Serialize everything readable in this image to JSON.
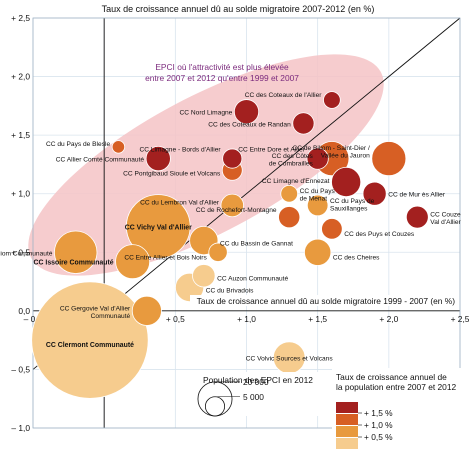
{
  "chart_data": {
    "type": "scatter",
    "title": "Taux de croissance annuel dû au solde migratoire 2007-2012 (en %)",
    "xlabel": "Taux de croissance annuel dû au solde migratoire 1999 - 2007 (en %)",
    "ylabel": "",
    "xlim": [
      -0.5,
      2.5
    ],
    "ylim": [
      -1.0,
      2.5
    ],
    "x_ticks": [
      -0.5,
      0.0,
      0.5,
      1.0,
      1.5,
      2.0,
      2.5
    ],
    "y_ticks": [
      -1.0,
      -0.5,
      0.0,
      0.5,
      1.0,
      1.5,
      2.0,
      2.5
    ],
    "x_tick_labels": [
      "– 0,5",
      "0,0",
      "+ 0,5",
      "+ 1,0",
      "+ 1,5",
      "+ 2,0",
      "+ 2,5"
    ],
    "y_tick_labels": [
      "– 1,0",
      "– 0,5",
      "0,0",
      "+ 0,5",
      "+ 1,0",
      "+ 1,5",
      "+ 2,0",
      "+ 2,5"
    ],
    "grid": true,
    "diagonal_line": true,
    "highlight_zone_label": [
      "EPCI où l'attractivité est plus élevée",
      "entre 2007 et 2012 qu'entre 1999 et 2007"
    ],
    "size_legend": {
      "title": "Population des EPCI en 2012",
      "entries": [
        {
          "label": "20 000",
          "value": 20000
        },
        {
          "label": "5 000",
          "value": 5000
        }
      ]
    },
    "color_legend": {
      "title": [
        "Taux de croissance annuel de",
        "la population entre 2007 et 2012"
      ],
      "entries": [
        {
          "label": "+ 1,5 %",
          "color": "#a3201f"
        },
        {
          "label": "+ 1,0 %",
          "color": "#d75f24"
        },
        {
          "label": "+ 0,5 %",
          "color": "#e89a3e"
        },
        {
          "label": "",
          "color": "#f6cc8e"
        }
      ]
    },
    "points": [
      {
        "name": "CC Clermont Communauté",
        "x": -0.1,
        "y": -0.25,
        "pop": 285000,
        "cls": 3,
        "bold": true
      },
      {
        "name": "CC Vichy Val d'Allier",
        "x": 0.38,
        "y": 0.72,
        "pop": 80000,
        "cls": 2,
        "bold": true
      },
      {
        "name": "CC Riom Communauté",
        "x": -0.2,
        "y": 0.5,
        "pop": 33000,
        "cls": 2,
        "bold": false
      },
      {
        "name": "CC Issoire Communauté",
        "x": 0.2,
        "y": 0.42,
        "pop": 20000,
        "cls": 2,
        "bold": true
      },
      {
        "name": "CC Gergovie Val d'Allier Communauté",
        "x": 0.3,
        "y": 0.0,
        "pop": 14000,
        "cls": 2,
        "bold": false
      },
      {
        "name": "CC Volvic Sources et Volcans",
        "x": 1.3,
        "y": -0.4,
        "pop": 17000,
        "cls": 3,
        "bold": false
      },
      {
        "name": "CC Nord Limagne",
        "x": 1.0,
        "y": 1.7,
        "pop": 9000,
        "cls": 0,
        "bold": false
      },
      {
        "name": "CC des Coteaux de l'Allier",
        "x": 1.6,
        "y": 1.8,
        "pop": 3500,
        "cls": 0,
        "bold": false
      },
      {
        "name": "CC des Coteaux de Randan",
        "x": 1.4,
        "y": 1.6,
        "pop": 6500,
        "cls": 0,
        "bold": false
      },
      {
        "name": "CC du Pays de Blesle",
        "x": 0.1,
        "y": 1.4,
        "pop": 1500,
        "cls": 1,
        "bold": false
      },
      {
        "name": "CC Allier Comté Communauté",
        "x": 0.38,
        "y": 1.3,
        "pop": 9000,
        "cls": 0,
        "bold": false
      },
      {
        "name": "CC Limagne - Bords d'Allier",
        "x": 0.9,
        "y": 1.3,
        "pop": 5000,
        "cls": 0,
        "bold": false
      },
      {
        "name": "CC Pontgibaud Sioule et Volcans",
        "x": 0.9,
        "y": 1.2,
        "pop": 5500,
        "cls": 1,
        "bold": false
      },
      {
        "name": "CC Entre Dore et Allier",
        "x": 1.5,
        "y": 1.3,
        "pop": 6500,
        "cls": 0,
        "bold": false
      },
      {
        "name": "CC des Côtes de Combrailles",
        "x": 1.6,
        "y": 1.3,
        "pop": 20000,
        "cls": 1,
        "bold": false
      },
      {
        "name": "CC de Billom - Saint-Dier / Vallée du Jauron",
        "x": 2.0,
        "y": 1.3,
        "pop": 20000,
        "cls": 1,
        "bold": false
      },
      {
        "name": "CC Limagne d'Ennezat",
        "x": 1.7,
        "y": 1.1,
        "pop": 14000,
        "cls": 0,
        "bold": false
      },
      {
        "name": "CC de Mur ès Allier",
        "x": 1.9,
        "y": 1.0,
        "pop": 8000,
        "cls": 0,
        "bold": false
      },
      {
        "name": "CC Couze Val d'Allier",
        "x": 2.2,
        "y": 0.8,
        "pop": 7000,
        "cls": 0,
        "bold": false
      },
      {
        "name": "CC du Lembron Val d'Allier",
        "x": 0.9,
        "y": 0.9,
        "pop": 7500,
        "cls": 2,
        "bold": false
      },
      {
        "name": "CC du Pays de Menat",
        "x": 1.3,
        "y": 1.0,
        "pop": 3500,
        "cls": 2,
        "bold": false
      },
      {
        "name": "CC du Pays de Sauxillanges",
        "x": 1.5,
        "y": 0.9,
        "pop": 6000,
        "cls": 2,
        "bold": false
      },
      {
        "name": "CC de Rochefort-Montagne",
        "x": 1.3,
        "y": 0.8,
        "pop": 6500,
        "cls": 1,
        "bold": false
      },
      {
        "name": "CC des Puys et Couzes",
        "x": 1.6,
        "y": 0.7,
        "pop": 6000,
        "cls": 1,
        "bold": false
      },
      {
        "name": "CC du Bassin de Gannat",
        "x": 0.7,
        "y": 0.6,
        "pop": 13000,
        "cls": 2,
        "bold": false
      },
      {
        "name": "CC Entre Allier et Bois Noirs",
        "x": 0.8,
        "y": 0.5,
        "pop": 4500,
        "cls": 2,
        "bold": false
      },
      {
        "name": "CC des Cheires",
        "x": 1.5,
        "y": 0.5,
        "pop": 11000,
        "cls": 2,
        "bold": false
      },
      {
        "name": "CC Auzon Communauté",
        "x": 0.7,
        "y": 0.3,
        "pop": 7500,
        "cls": 3,
        "bold": false
      },
      {
        "name": "CC du Brivadois",
        "x": 0.6,
        "y": 0.2,
        "pop": 13000,
        "cls": 3,
        "bold": false
      }
    ]
  }
}
